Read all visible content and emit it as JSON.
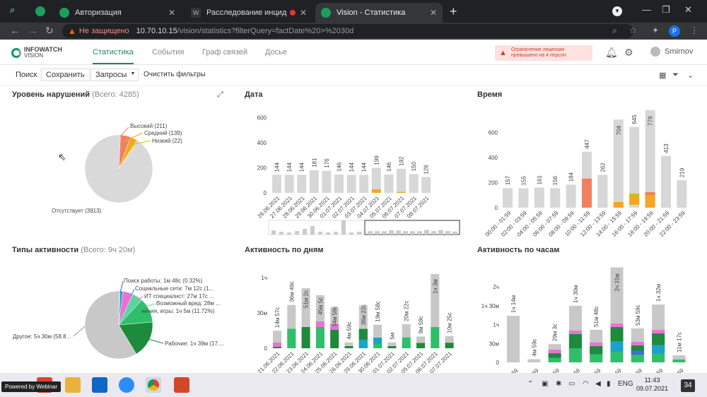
{
  "browser": {
    "tabs": [
      {
        "title": "Авторизация",
        "active": false
      },
      {
        "title": "Расследование инцидентов",
        "active": false
      },
      {
        "title": "Vision - Статистика",
        "active": true
      }
    ],
    "not_secure": "Не защищено",
    "url_host": "10.70.10.15",
    "url_path": "/vision/statistics?filterQuery=factDate%20>%2030d",
    "profile_initial": "P"
  },
  "app": {
    "logo_line1": "INFOWATCH",
    "logo_line2": "VISION",
    "nav_tabs": [
      "Статистика",
      "События",
      "Граф связей",
      "Досье"
    ],
    "active_tab": "Статистика",
    "license_warning_line1": "Ограничение лицензии",
    "license_warning_line2": "превышено на 4 персон",
    "username": "Smirnov"
  },
  "toolbar": {
    "search": "Поиск",
    "save": "Сохранить",
    "queries": "Запросы",
    "clear_filters": "Очистить фильтры"
  },
  "panels": {
    "violations": {
      "title": "Уровень нарушений",
      "subtitle": "(Всего: 4285)"
    },
    "date": {
      "title": "Дата"
    },
    "time": {
      "title": "Время"
    },
    "activity_types": {
      "title": "Типы активности",
      "subtitle": "(Всего: 9ч 20м)"
    },
    "activity_days": {
      "title": "Активность по дням"
    },
    "activity_hours": {
      "title": "Активность по часам"
    }
  },
  "chart_data": [
    {
      "type": "pie",
      "title": "Уровень нарушений",
      "slices": [
        {
          "label": "Высокий (211)",
          "value": 211,
          "color": "#f08060"
        },
        {
          "label": "Средний (139)",
          "value": 139,
          "color": "#f5a623"
        },
        {
          "label": "Низкий (22)",
          "value": 22,
          "color": "#d4c400"
        },
        {
          "label": "Отсутствует (3913)",
          "value": 3913,
          "color": "#d9d9d9"
        }
      ]
    },
    {
      "type": "bar",
      "title": "Дата",
      "categories": [
        "26.06.2021",
        "27.06.2021",
        "28.06.2021",
        "29.06.2021",
        "30.06.2021",
        "01.07.2021",
        "02.07.2021",
        "03.07.2021",
        "04.07.2021",
        "05.07.2021",
        "06.07.2021",
        "07.07.2021",
        "08.07.2021"
      ],
      "values": [
        144,
        144,
        144,
        181,
        176,
        146,
        144,
        144,
        199,
        146,
        192,
        150,
        126
      ],
      "highlight": [
        0,
        0,
        0,
        0,
        0,
        0,
        0,
        0,
        28,
        0,
        8,
        0,
        0
      ],
      "yticks": [
        0,
        200,
        400,
        600
      ],
      "ylim": [
        0,
        620
      ]
    },
    {
      "type": "bar",
      "title": "Время",
      "categories": [
        "00:00 - 01:59",
        "02:00 - 03:59",
        "04:00 - 05:59",
        "06:00 - 07:59",
        "08:00 - 09:59",
        "10:00 - 11:59",
        "12:00 - 13:59",
        "14:00 - 15:59",
        "16:00 - 17:59",
        "18:00 - 19:59",
        "20:00 - 21:59",
        "22:00 - 23:59"
      ],
      "values": [
        157,
        155,
        161,
        156,
        184,
        447,
        262,
        704,
        645,
        779,
        413,
        219
      ],
      "yticks": [
        0,
        200,
        400,
        600
      ],
      "ylim": [
        0,
        790
      ]
    },
    {
      "type": "pie",
      "title": "Типы активности",
      "slices": [
        {
          "label": "Поиск работы: 1м 48с (0.32%)",
          "value": 0.32,
          "color": "#3a6fd8"
        },
        {
          "label": "Социальные сети: 7м 12с (1...",
          "value": 1.3,
          "color": "#1aa3c8"
        },
        {
          "label": "ИТ специалист: 27м 17с ...",
          "value": 4.9,
          "color": "#e872d6"
        },
        {
          "label": "Возможный вред: 28м ...",
          "value": 5.0,
          "color": "#5dd39e"
        },
        {
          "label": "нения, игры: 1ч 5м (11.72%)",
          "value": 11.72,
          "color": "#2fbf6a"
        },
        {
          "label": "Рабочие: 1ч 39м (17....",
          "value": 17.7,
          "color": "#1e8a3c"
        },
        {
          "label": "Другое: 5ч 30м (58.8...",
          "value": 58.8,
          "color": "#c8c8c8"
        }
      ]
    },
    {
      "type": "bar",
      "title": "Активность по дням",
      "categories": [
        "21.06.2021",
        "22.06.2021",
        "23.06.2021",
        "24.06.2021",
        "25.06.2021",
        "26.06.2021",
        "29.06.2021",
        "30.06.2021",
        "01.07.2021",
        "02.07.2021",
        "05.07.2021",
        "06.07.2021",
        "07.07.2021"
      ],
      "labels": [
        "14м 57с",
        "36м 49с",
        "51м 2с",
        "45м 5с",
        "34м 58с",
        "4м 59с",
        "36м 22с",
        "19м 58с",
        "5м",
        "20м 22с",
        "9м 59с",
        "1ч 3м",
        "10м 25с"
      ],
      "values": [
        14.95,
        36.8,
        51.0,
        45.1,
        34.97,
        4.98,
        36.4,
        19.97,
        5.0,
        20.4,
        9.98,
        63.0,
        10.4
      ],
      "ylabels": [
        "0",
        "30м",
        "1ч"
      ],
      "ylim": [
        0,
        66
      ]
    },
    {
      "type": "bar",
      "title": "Активность по часам",
      "labels": [
        "1ч 14м",
        "4м 59с",
        "29м 3с",
        "1ч 30м",
        "51м 48с",
        "2ч 31м",
        "53м 59с",
        "1ч 32м",
        "11м 17с"
      ],
      "values": [
        74,
        5,
        29,
        90,
        51.8,
        151,
        54,
        92,
        11.3
      ],
      "ylabels": [
        "0",
        "30м",
        "1ч",
        "1ч 30м",
        "2ч"
      ],
      "ylim": [
        0,
        155
      ]
    }
  ]
}
